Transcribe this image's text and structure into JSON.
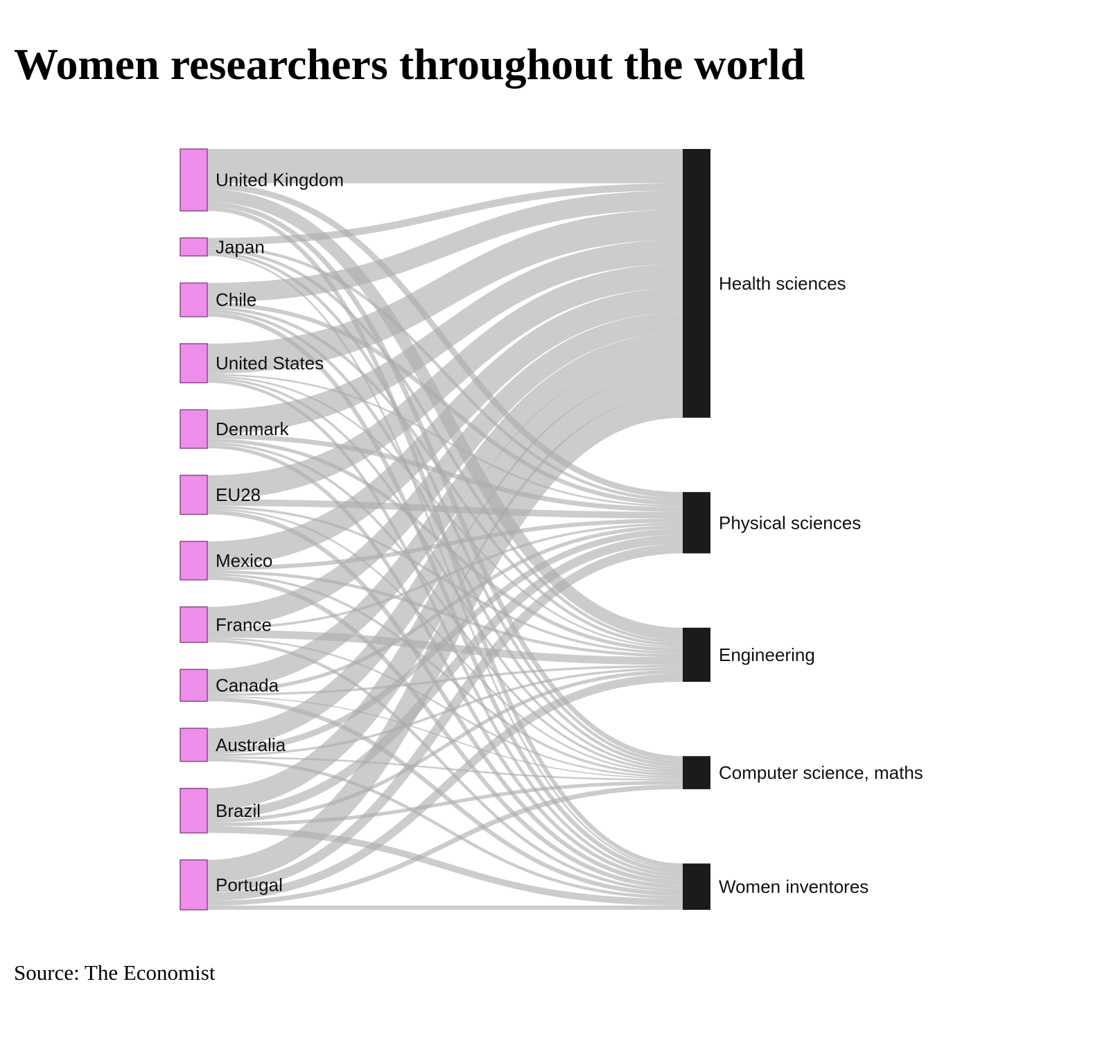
{
  "chart_data": {
    "type": "sankey",
    "title": "Women researchers throughout the world",
    "source": "Source: The Economist",
    "colors": {
      "source_node": "#ee8eea",
      "source_node_border": "#8a4a86",
      "target_node": "#1b1b1b",
      "link": "#aaaaaa"
    },
    "sources": [
      "United Kingdom",
      "Japan",
      "Chile",
      "United States",
      "Denmark",
      "EU28",
      "Mexico",
      "France",
      "Canada",
      "Australia",
      "Brazil",
      "Portugal"
    ],
    "targets": [
      "Health sciences",
      "Physical sciences",
      "Engineering",
      "Computer science, maths",
      "Women inventores"
    ],
    "flows": [
      [
        0.57,
        0.1,
        0.21,
        0.08,
        0.07
      ],
      [
        0.12,
        0.05,
        0.05,
        0.05,
        0.03
      ],
      [
        0.32,
        0.07,
        0.05,
        0.05,
        0.07
      ],
      [
        0.5,
        0.03,
        0.03,
        0.04,
        0.05
      ],
      [
        0.4,
        0.08,
        0.06,
        0.04,
        0.06
      ],
      [
        0.4,
        0.11,
        0.04,
        0.03,
        0.07
      ],
      [
        0.41,
        0.07,
        0.05,
        0.04,
        0.07
      ],
      [
        0.34,
        0.04,
        0.13,
        0.03,
        0.05
      ],
      [
        0.34,
        0.06,
        0.04,
        0.02,
        0.07
      ],
      [
        0.33,
        0.1,
        0.04,
        0.03,
        0.05
      ],
      [
        0.36,
        0.15,
        0.06,
        0.06,
        0.11
      ],
      [
        0.38,
        0.16,
        0.14,
        0.08,
        0.07
      ]
    ]
  }
}
